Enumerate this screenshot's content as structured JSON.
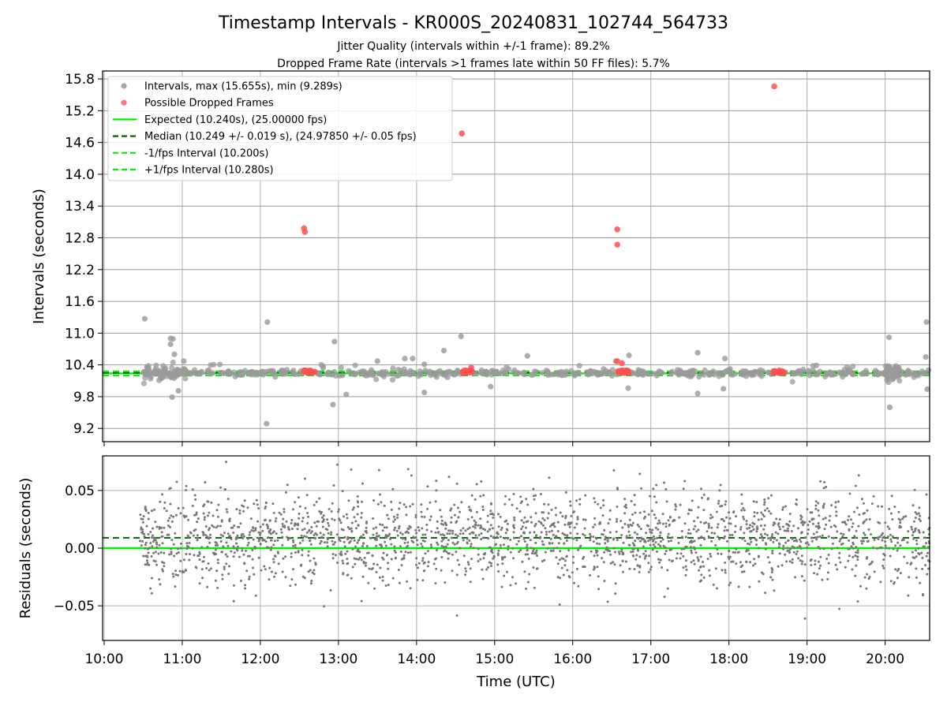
{
  "chart_data": [
    {
      "type": "scatter",
      "title": "Timestamp Intervals - KR000S_20240831_102744_564733",
      "subtitle_lines": [
        "Jitter Quality (intervals within +/-1 frame): 89.2%",
        "Dropped Frame Rate (intervals >1 frames late within 50 FF files): 5.7%"
      ],
      "ylabel": "Intervals (seconds)",
      "ylim": [
        8.95,
        15.95
      ],
      "xlim_hours": [
        9.98,
        20.57
      ],
      "grid": true,
      "legend_placement": "upper-left",
      "y_ticks": [
        "9.2",
        "9.8",
        "10.4",
        "11.0",
        "11.6",
        "12.2",
        "12.8",
        "13.4",
        "14.0",
        "14.6",
        "15.2",
        "15.8"
      ],
      "legend": [
        {
          "label": "Intervals, max (15.655s), min (9.289s)",
          "kind": "marker",
          "color": "#999999"
        },
        {
          "label": "Possible Dropped Frames",
          "kind": "marker",
          "color": "#ff6060"
        },
        {
          "label": "Expected (10.240s), (25.00000 fps)",
          "kind": "line",
          "color": "#00ee00",
          "dash": "solid"
        },
        {
          "label": "Median (10.249 +/- 0.019 s), (24.97850 +/- 0.05 fps)",
          "kind": "line",
          "color": "#006400",
          "dash": "dash"
        },
        {
          "label": "-1/fps Interval (10.200s)",
          "kind": "line",
          "color": "#00ee00",
          "dash": "dash"
        },
        {
          "label": "+1/fps Interval (10.280s)",
          "kind": "line",
          "color": "#00ee00",
          "dash": "dash"
        }
      ],
      "reference_lines": {
        "expected": 10.24,
        "median": 10.249,
        "minus_1fps": 10.2,
        "plus_1fps": 10.28
      },
      "data_start_hour": 10.46,
      "data_end_hour": 20.57,
      "typical_spread": 0.03,
      "interval_outliers": [
        [
          10.52,
          11.27
        ],
        [
          10.85,
          10.9
        ],
        [
          10.88,
          10.89
        ],
        [
          10.85,
          10.79
        ],
        [
          10.9,
          10.6
        ],
        [
          10.87,
          9.79
        ],
        [
          10.95,
          9.91
        ],
        [
          11.02,
          10.47
        ],
        [
          12.09,
          11.21
        ],
        [
          12.08,
          9.29
        ],
        [
          12.95,
          10.84
        ],
        [
          12.93,
          9.65
        ],
        [
          13.1,
          9.84
        ],
        [
          13.5,
          10.47
        ],
        [
          13.85,
          10.52
        ],
        [
          13.95,
          10.52
        ],
        [
          14.1,
          10.41
        ],
        [
          14.1,
          9.88
        ],
        [
          14.35,
          10.67
        ],
        [
          14.57,
          10.94
        ],
        [
          14.95,
          9.99
        ],
        [
          15.42,
          10.57
        ],
        [
          16.55,
          10.47
        ],
        [
          16.72,
          10.58
        ],
        [
          16.71,
          9.96
        ],
        [
          17.6,
          10.63
        ],
        [
          17.6,
          9.86
        ],
        [
          17.95,
          10.52
        ],
        [
          17.93,
          9.95
        ],
        [
          19.12,
          10.39
        ],
        [
          20.05,
          10.92
        ],
        [
          20.06,
          9.6
        ],
        [
          20.53,
          11.21
        ],
        [
          20.52,
          10.55
        ],
        [
          20.54,
          9.94
        ]
      ],
      "dropped_frames": [
        [
          12.56,
          12.98
        ],
        [
          12.57,
          12.91
        ],
        [
          14.58,
          14.77
        ],
        [
          16.57,
          12.96
        ],
        [
          16.57,
          12.67
        ],
        [
          16.57,
          10.47
        ],
        [
          16.63,
          10.43
        ],
        [
          18.58,
          15.66
        ],
        [
          14.7,
          10.35
        ]
      ],
      "dropped_clusters": [
        {
          "start": 12.55,
          "end": 12.7,
          "value": 10.27
        },
        {
          "start": 14.57,
          "end": 14.72,
          "value": 10.27
        },
        {
          "start": 16.57,
          "end": 16.72,
          "value": 10.27
        },
        {
          "start": 18.57,
          "end": 18.72,
          "value": 10.27
        }
      ]
    },
    {
      "type": "scatter",
      "xlabel": "Time (UTC)",
      "ylabel": "Residuals (seconds)",
      "ylim": [
        -0.08,
        0.08
      ],
      "xlim_hours": [
        9.98,
        20.57
      ],
      "grid": true,
      "y_ticks": [
        {
          "value": 0.05,
          "label": "0.05"
        },
        {
          "value": 0.0,
          "label": "0.00"
        },
        {
          "value": -0.05,
          "label": "−0.05"
        }
      ],
      "x_ticks": [
        "10:00",
        "11:00",
        "12:00",
        "13:00",
        "14:00",
        "15:00",
        "16:00",
        "17:00",
        "18:00",
        "19:00",
        "20:00"
      ],
      "x_tick_hours": [
        10,
        11,
        12,
        13,
        14,
        15,
        16,
        17,
        18,
        19,
        20
      ],
      "reference_lines": {
        "expected": 0.0,
        "median": 0.009
      },
      "residual_center": 0.009,
      "residual_spread": 0.02,
      "data_start_hour": 10.46,
      "data_end_hour": 20.57
    }
  ],
  "colors": {
    "interval_marker": "#999999",
    "dropped_marker": "#ff5050",
    "residual_marker": "#777777",
    "expected_line": "#00ee00",
    "median_line": "#006400",
    "grid": "#b0b0b0"
  }
}
